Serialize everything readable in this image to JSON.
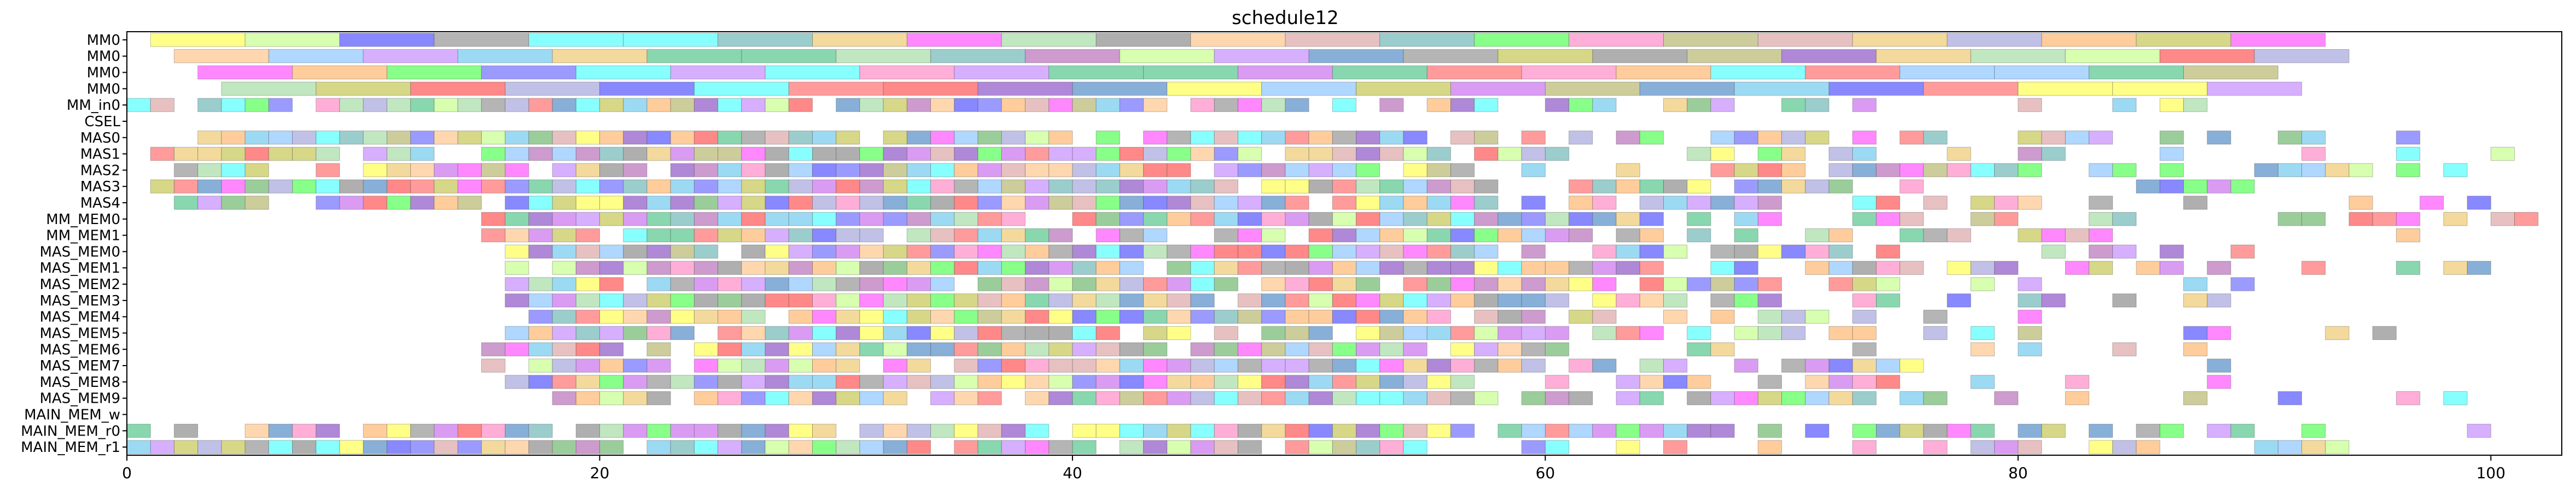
{
  "chart_data": {
    "type": "gantt",
    "title": "schedule12",
    "xlabel": "",
    "ylabel": "",
    "xlim": [
      0,
      103
    ],
    "x_ticks": [
      0,
      20,
      40,
      60,
      80,
      100
    ],
    "grid": false,
    "legend": "none",
    "rows": [
      "MM0",
      "MM0",
      "MM0",
      "MM0",
      "MM_in0",
      "CSEL",
      "MAS0",
      "MAS1",
      "MAS2",
      "MAS3",
      "MAS4",
      "MM_MEM0",
      "MM_MEM1",
      "MAS_MEM0",
      "MAS_MEM1",
      "MAS_MEM2",
      "MAS_MEM3",
      "MAS_MEM4",
      "MAS_MEM5",
      "MAS_MEM6",
      "MAS_MEM7",
      "MAS_MEM8",
      "MAS_MEM9",
      "MAIN_MEM_w",
      "MAIN_MEM_r0",
      "MAIN_MEM_r1"
    ],
    "palette": [
      "#ff7f7f",
      "#7fbf7f",
      "#7f7fff",
      "#ffbf7f",
      "#bf7fbf",
      "#7fbfbf",
      "#bfbf7f",
      "#ff99cc",
      "#99ccff",
      "#ccff99",
      "#ffcc99",
      "#cc99ff",
      "#66cc99",
      "#9966cc",
      "#cccc66",
      "#6699cc",
      "#ff6666",
      "#66ff66",
      "#6666ff",
      "#ffff66",
      "#66ffff",
      "#ff66ff",
      "#999999",
      "#e0b0b0",
      "#b0e0b0",
      "#b0b0e0",
      "#f0d080",
      "#80d0f0",
      "#d080f0",
      "#a0a0a0"
    ],
    "series": [
      {
        "row": 0,
        "tasks": [
          [
            1,
            5
          ],
          [
            5,
            9
          ],
          [
            9,
            13
          ],
          [
            13,
            17
          ],
          [
            17,
            21
          ],
          [
            21,
            25
          ],
          [
            25,
            29
          ],
          [
            29,
            33
          ],
          [
            33,
            37
          ],
          [
            37,
            41
          ],
          [
            41,
            45
          ],
          [
            45,
            49
          ],
          [
            49,
            53
          ],
          [
            53,
            57
          ],
          [
            57,
            61
          ],
          [
            61,
            65
          ],
          [
            65,
            69
          ],
          [
            69,
            73
          ],
          [
            73,
            77
          ],
          [
            77,
            81
          ],
          [
            81,
            85
          ],
          [
            85,
            89
          ],
          [
            89,
            93
          ]
        ]
      },
      {
        "row": 1,
        "tasks": [
          [
            2,
            6
          ],
          [
            6,
            10
          ],
          [
            10,
            14
          ],
          [
            14,
            18
          ],
          [
            18,
            22
          ],
          [
            22,
            26
          ],
          [
            26,
            30
          ],
          [
            30,
            34
          ],
          [
            34,
            38
          ],
          [
            38,
            42
          ],
          [
            42,
            46
          ],
          [
            46,
            50
          ],
          [
            50,
            54
          ],
          [
            54,
            58
          ],
          [
            58,
            62
          ],
          [
            62,
            66
          ],
          [
            66,
            70
          ],
          [
            70,
            74
          ],
          [
            74,
            78
          ],
          [
            78,
            82
          ],
          [
            82,
            86
          ],
          [
            86,
            90
          ],
          [
            90,
            94
          ]
        ]
      },
      {
        "row": 2,
        "tasks": [
          [
            3,
            7
          ],
          [
            7,
            11
          ],
          [
            11,
            15
          ],
          [
            15,
            19
          ],
          [
            19,
            23
          ],
          [
            23,
            27
          ],
          [
            27,
            31
          ],
          [
            31,
            35
          ],
          [
            35,
            39
          ],
          [
            39,
            43
          ],
          [
            43,
            47
          ],
          [
            47,
            51
          ],
          [
            51,
            55
          ],
          [
            55,
            59
          ],
          [
            59,
            63
          ],
          [
            63,
            67
          ],
          [
            67,
            71
          ],
          [
            71,
            75
          ],
          [
            75,
            79
          ],
          [
            79,
            83
          ],
          [
            83,
            87
          ],
          [
            87,
            91
          ]
        ]
      },
      {
        "row": 3,
        "tasks": [
          [
            4,
            8
          ],
          [
            8,
            12
          ],
          [
            12,
            16
          ],
          [
            16,
            20
          ],
          [
            20,
            24
          ],
          [
            24,
            28
          ],
          [
            28,
            32
          ],
          [
            32,
            36
          ],
          [
            36,
            40
          ],
          [
            40,
            44
          ],
          [
            44,
            48
          ],
          [
            48,
            52
          ],
          [
            52,
            56
          ],
          [
            56,
            60
          ],
          [
            60,
            64
          ],
          [
            64,
            68
          ],
          [
            68,
            72
          ],
          [
            72,
            76
          ],
          [
            76,
            80
          ],
          [
            80,
            84
          ],
          [
            84,
            88
          ],
          [
            88,
            92
          ]
        ]
      }
    ],
    "unit_rows": {
      "MM_in0": {
        "start": 0,
        "end": 89
      },
      "MAS0": {
        "start": 2,
        "end": 103
      },
      "MAS1": {
        "start": 1,
        "end": 101
      },
      "MAS2": {
        "start": 2,
        "end": 100
      },
      "MAS3": {
        "start": 1,
        "end": 99
      },
      "MAS4": {
        "start": 1,
        "end": 102
      },
      "MM_MEM0": {
        "start": 15,
        "end": 102
      },
      "MM_MEM1": {
        "start": 15,
        "end": 100
      },
      "MAS_MEM0": {
        "start": 16,
        "end": 90
      },
      "MAS_MEM1": {
        "start": 16,
        "end": 102
      },
      "MAS_MEM2": {
        "start": 16,
        "end": 92
      },
      "MAS_MEM3": {
        "start": 16,
        "end": 89
      },
      "MAS_MEM4": {
        "start": 16,
        "end": 88
      },
      "MAS_MEM5": {
        "start": 16,
        "end": 97
      },
      "MAS_MEM6": {
        "start": 15,
        "end": 90
      },
      "MAS_MEM7": {
        "start": 15,
        "end": 89
      },
      "MAS_MEM8": {
        "start": 16,
        "end": 89
      },
      "MAS_MEM9": {
        "start": 16,
        "end": 99
      },
      "MAIN_MEM_r0": {
        "start": 0,
        "end": 102
      },
      "MAIN_MEM_r1": {
        "start": 0,
        "end": 96
      }
    }
  }
}
